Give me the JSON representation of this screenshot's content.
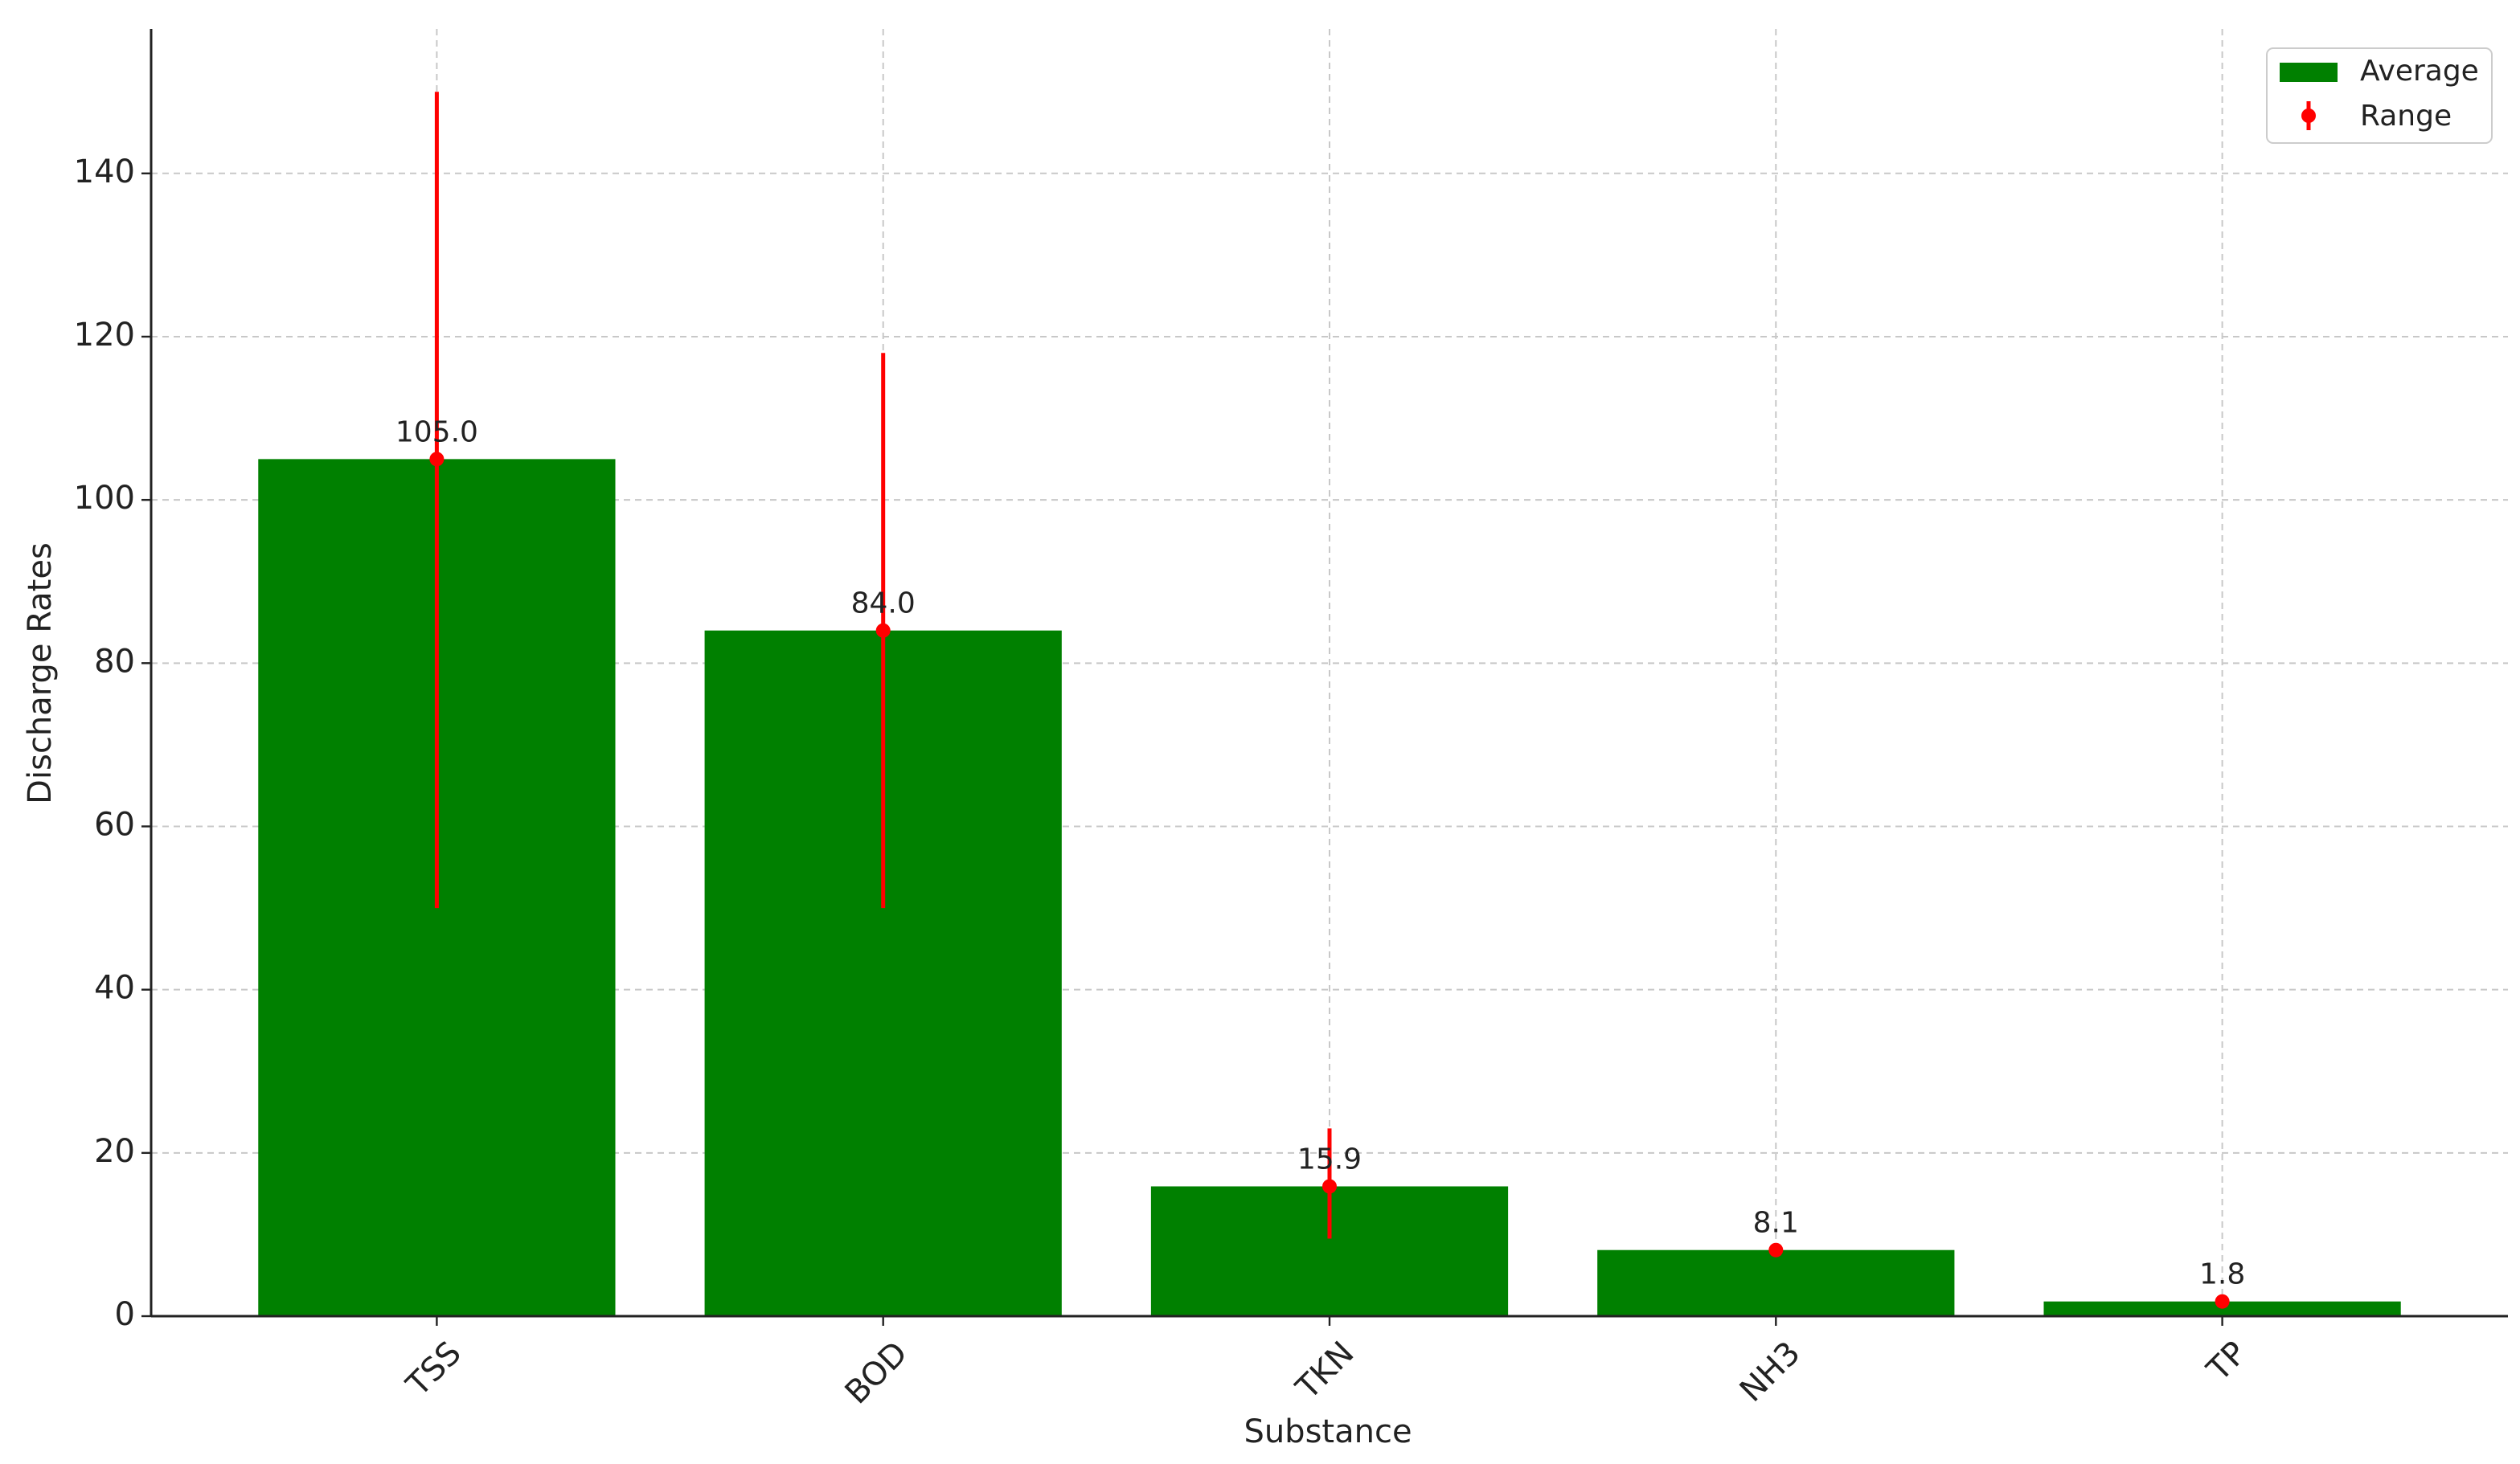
{
  "chart_data": {
    "type": "bar",
    "x_label": "Substance",
    "y_label": "Discharge Rates",
    "categories": [
      "TSS",
      "BOD",
      "TKN",
      "NH3",
      "TP"
    ],
    "series": [
      {
        "name": "Average",
        "color": "#008000",
        "values": [
          105.0,
          84.0,
          15.9,
          8.1,
          1.8
        ],
        "value_labels": [
          "105.0",
          "84.0",
          "15.9",
          "8.1",
          "1.8"
        ]
      }
    ],
    "range": {
      "name": "Range",
      "color": "#ff0000",
      "low": [
        50,
        50,
        9.5,
        null,
        null
      ],
      "high": [
        150,
        118,
        23,
        null,
        null
      ]
    },
    "ylim": [
      0,
      157.7
    ],
    "yticks": [
      0,
      20,
      40,
      60,
      80,
      100,
      120,
      140
    ],
    "grid": true,
    "legend": "upper right"
  }
}
